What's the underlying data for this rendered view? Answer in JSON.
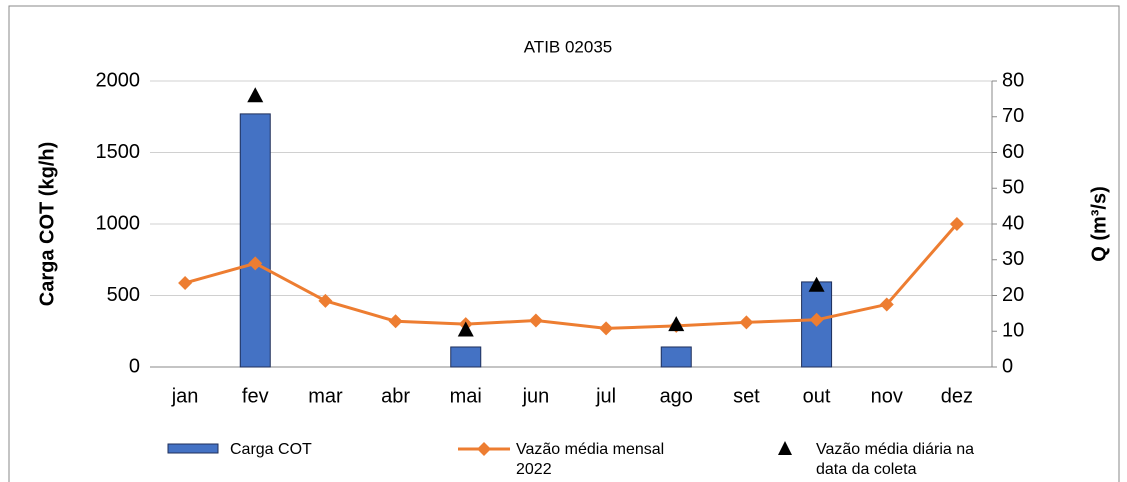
{
  "chart_data": {
    "type": "combo",
    "title": "ATIB 02035",
    "y_label": "Carga COT (kg/h)",
    "y2_label": "Q (m³/s)",
    "categories": [
      "jan",
      "fev",
      "mar",
      "abr",
      "mai",
      "jun",
      "jul",
      "ago",
      "set",
      "out",
      "nov",
      "dez"
    ],
    "series": [
      {
        "name": "Carga COT",
        "type": "bar",
        "color": "#4472c4",
        "values": [
          null,
          1770,
          null,
          null,
          140,
          null,
          null,
          140,
          null,
          595,
          null,
          null
        ]
      },
      {
        "name": "Vazão média mensal 2022",
        "type": "line",
        "axis": "y2",
        "color": "#ed7d31",
        "values": [
          23.5,
          29,
          18.5,
          12.8,
          12,
          13,
          10.8,
          11.5,
          12.5,
          13.2,
          17.5,
          40
        ]
      },
      {
        "name": "Vazão média diária na data da coleta",
        "type": "scatter",
        "axis": "y2",
        "color": "#000000",
        "values": [
          null,
          76,
          null,
          null,
          10.5,
          null,
          null,
          12,
          null,
          23,
          null,
          null
        ]
      }
    ],
    "ylim": [
      0,
      2000
    ],
    "yticks": [
      0,
      500,
      1000,
      1500,
      2000
    ],
    "y2lim": [
      0,
      80
    ],
    "y2ticks": [
      0,
      10,
      20,
      30,
      40,
      50,
      60,
      70,
      80
    ],
    "grid": true
  }
}
